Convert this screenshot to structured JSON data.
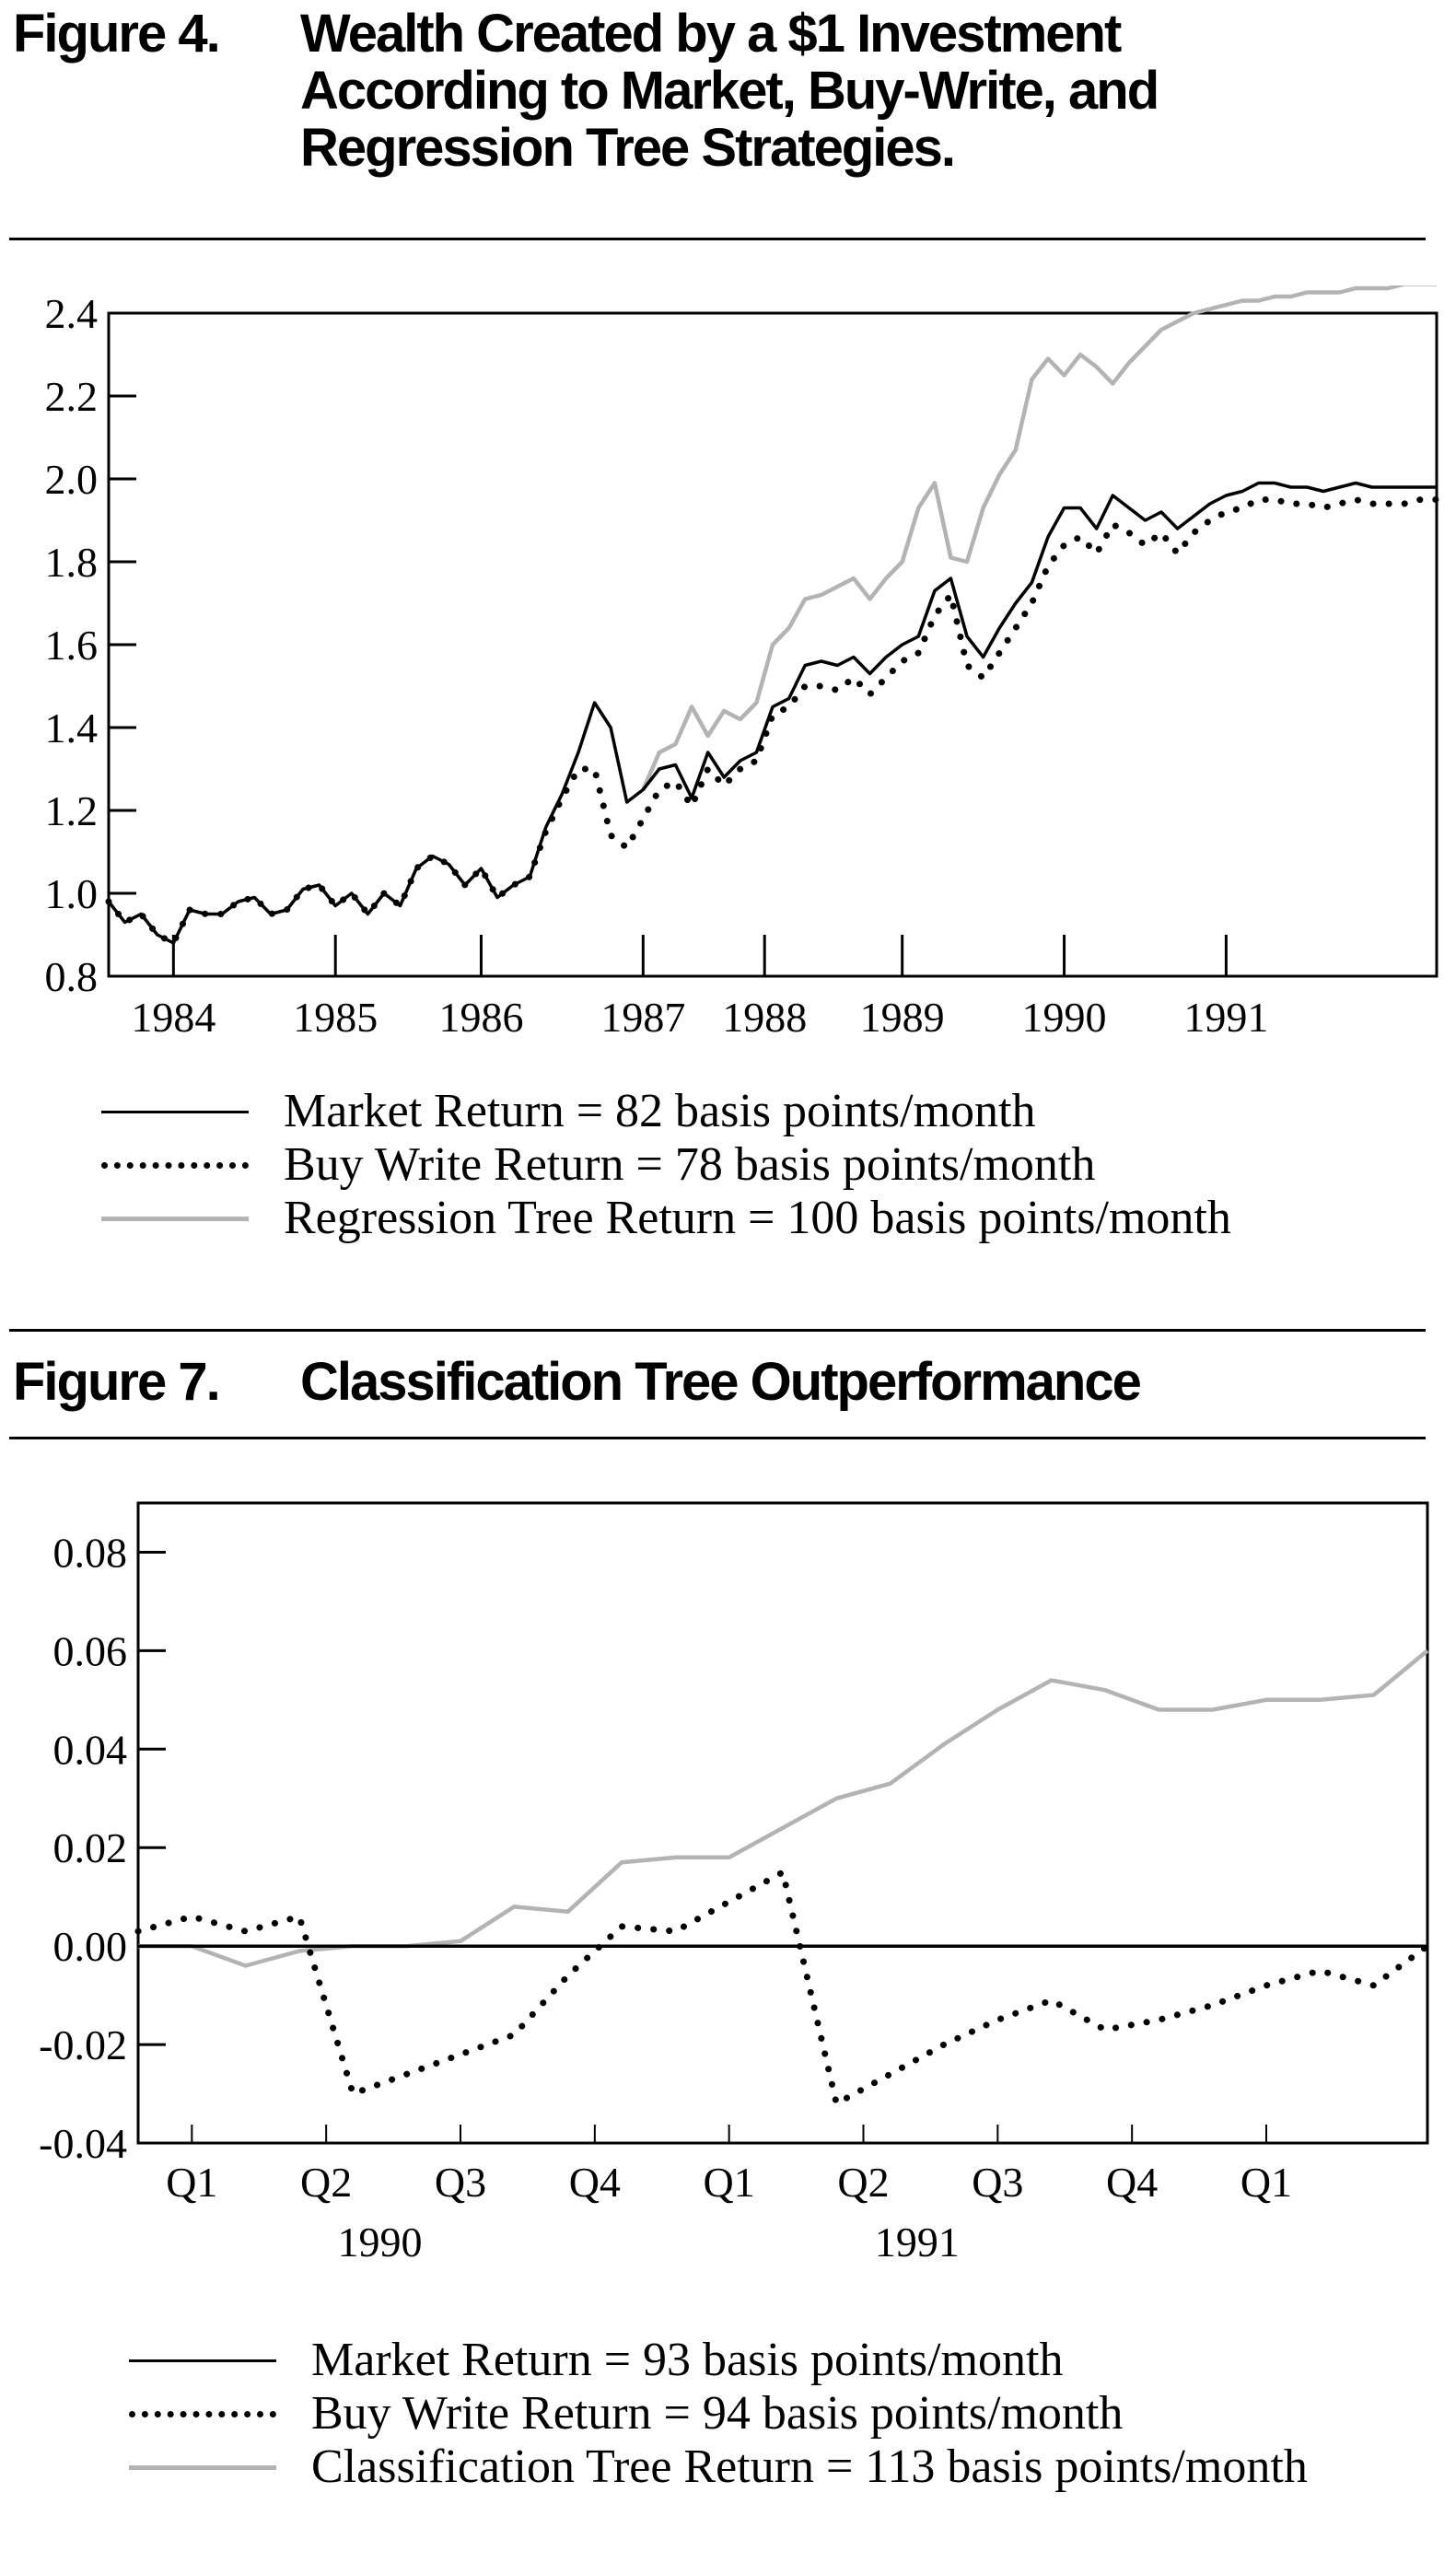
{
  "figures": [
    {
      "number": "Figure 4.",
      "title": "Wealth Created by a $1 Investment According to Market, Buy-Write, and Regression Tree Strategies.",
      "legend": [
        {
          "label": "Market Return = 82 basis points/month",
          "style": "solid"
        },
        {
          "label": "Buy Write Return = 78 basis points/month",
          "style": "dotted"
        },
        {
          "label": "Regression Tree Return = 100 basis points/month",
          "style": "gray"
        }
      ],
      "chart_data": {
        "type": "line",
        "title": "",
        "xlabel": "",
        "ylabel": "",
        "xlim": [
          1983.6,
          1991.8
        ],
        "ylim": [
          0.8,
          2.4
        ],
        "yticks": [
          "0.8",
          "1.0",
          "1.2",
          "1.4",
          "1.6",
          "1.8",
          "2.0",
          "2.2",
          "2.4"
        ],
        "xticks": [
          {
            "label": "1984",
            "at": 1984.0
          },
          {
            "label": "1985",
            "at": 1985.0
          },
          {
            "label": "1986",
            "at": 1985.9
          },
          {
            "label": "1987",
            "at": 1986.9
          },
          {
            "label": "1988",
            "at": 1987.65
          },
          {
            "label": "1989",
            "at": 1988.5
          },
          {
            "label": "1990",
            "at": 1989.5
          },
          {
            "label": "1991",
            "at": 1990.5
          }
        ],
        "grid": false,
        "legend_position": "below",
        "series": [
          {
            "style": "solid",
            "color": "#000000",
            "x": [
              1983.6,
              1983.7,
              1983.8,
              1983.9,
              1984.0,
              1984.1,
              1984.2,
              1984.3,
              1984.4,
              1984.5,
              1984.6,
              1984.7,
              1984.8,
              1984.9,
              1985.0,
              1985.1,
              1985.2,
              1985.3,
              1985.4,
              1985.5,
              1985.6,
              1985.7,
              1985.8,
              1985.9,
              1986.0,
              1986.1,
              1986.2,
              1986.3,
              1986.4,
              1986.5,
              1986.6,
              1986.7,
              1986.8,
              1986.9,
              1987.0,
              1987.1,
              1987.2,
              1987.3,
              1987.4,
              1987.5,
              1987.6,
              1987.7,
              1987.8,
              1987.9,
              1988.0,
              1988.1,
              1988.2,
              1988.3,
              1988.4,
              1988.5,
              1988.6,
              1988.7,
              1988.8,
              1988.9,
              1989.0,
              1989.1,
              1989.2,
              1989.3,
              1989.4,
              1989.5,
              1989.6,
              1989.7,
              1989.8,
              1989.9,
              1990.0,
              1990.1,
              1990.2,
              1990.3,
              1990.4,
              1990.5,
              1990.6,
              1990.7,
              1990.8,
              1990.9,
              1991.0,
              1991.1,
              1991.2,
              1991.3,
              1991.4,
              1991.5,
              1991.6,
              1991.7,
              1991.8
            ],
            "y": [
              0.98,
              0.93,
              0.95,
              0.9,
              0.88,
              0.96,
              0.95,
              0.95,
              0.98,
              0.99,
              0.95,
              0.96,
              1.01,
              1.02,
              0.97,
              1.0,
              0.95,
              1.0,
              0.97,
              1.06,
              1.09,
              1.07,
              1.02,
              1.06,
              0.99,
              1.02,
              1.04,
              1.16,
              1.24,
              1.34,
              1.46,
              1.4,
              1.22,
              1.25,
              1.3,
              1.31,
              1.23,
              1.34,
              1.28,
              1.32,
              1.34,
              1.45,
              1.47,
              1.55,
              1.56,
              1.55,
              1.57,
              1.53,
              1.57,
              1.6,
              1.62,
              1.73,
              1.76,
              1.62,
              1.57,
              1.64,
              1.7,
              1.75,
              1.86,
              1.93,
              1.93,
              1.88,
              1.96,
              1.93,
              1.9,
              1.92,
              1.88,
              1.91,
              1.94,
              1.96,
              1.97,
              1.99,
              1.99,
              1.98,
              1.98,
              1.97,
              1.98,
              1.99,
              1.98,
              1.98,
              1.98,
              1.98,
              1.98
            ]
          },
          {
            "style": "dotted",
            "color": "#000000",
            "x": [
              1983.6,
              1983.7,
              1983.8,
              1983.9,
              1984.0,
              1984.1,
              1984.2,
              1984.3,
              1984.4,
              1984.5,
              1984.6,
              1984.7,
              1984.8,
              1984.9,
              1985.0,
              1985.1,
              1985.2,
              1985.3,
              1985.4,
              1985.5,
              1985.6,
              1985.7,
              1985.8,
              1985.9,
              1986.0,
              1986.1,
              1986.2,
              1986.3,
              1986.4,
              1986.5,
              1986.6,
              1986.7,
              1986.8,
              1986.9,
              1987.0,
              1987.1,
              1987.2,
              1987.3,
              1987.4,
              1987.5,
              1987.6,
              1987.7,
              1987.8,
              1987.9,
              1988.0,
              1988.1,
              1988.2,
              1988.3,
              1988.4,
              1988.5,
              1988.6,
              1988.7,
              1988.8,
              1988.9,
              1989.0,
              1989.1,
              1989.2,
              1989.3,
              1989.4,
              1989.5,
              1989.6,
              1989.7,
              1989.8,
              1989.9,
              1990.0,
              1990.1,
              1990.2,
              1990.3,
              1990.4,
              1990.5,
              1990.6,
              1990.7,
              1990.8,
              1990.9,
              1991.0,
              1991.1,
              1991.2,
              1991.3,
              1991.4,
              1991.5,
              1991.6,
              1991.7,
              1991.8
            ],
            "y": [
              0.98,
              0.93,
              0.95,
              0.9,
              0.88,
              0.96,
              0.95,
              0.95,
              0.98,
              0.99,
              0.95,
              0.96,
              1.01,
              1.02,
              0.97,
              1.0,
              0.95,
              1.0,
              0.97,
              1.06,
              1.09,
              1.07,
              1.02,
              1.06,
              0.99,
              1.02,
              1.04,
              1.15,
              1.23,
              1.3,
              1.3,
              1.14,
              1.11,
              1.18,
              1.25,
              1.27,
              1.21,
              1.3,
              1.26,
              1.3,
              1.32,
              1.43,
              1.45,
              1.5,
              1.5,
              1.49,
              1.52,
              1.48,
              1.52,
              1.56,
              1.58,
              1.67,
              1.72,
              1.55,
              1.52,
              1.58,
              1.64,
              1.7,
              1.79,
              1.84,
              1.86,
              1.82,
              1.89,
              1.87,
              1.84,
              1.87,
              1.82,
              1.87,
              1.9,
              1.92,
              1.93,
              1.95,
              1.95,
              1.94,
              1.94,
              1.93,
              1.94,
              1.95,
              1.94,
              1.94,
              1.94,
              1.95,
              1.95
            ]
          },
          {
            "style": "gray",
            "color": "#b3b3b3",
            "x": [
              1986.9,
              1987.0,
              1987.1,
              1987.2,
              1987.3,
              1987.4,
              1987.5,
              1987.6,
              1987.7,
              1987.8,
              1987.9,
              1988.0,
              1988.1,
              1988.2,
              1988.3,
              1988.4,
              1988.5,
              1988.6,
              1988.7,
              1988.8,
              1988.9,
              1989.0,
              1989.1,
              1989.2,
              1989.3,
              1989.4,
              1989.5,
              1989.6,
              1989.7,
              1989.8,
              1989.9,
              1990.0,
              1990.1,
              1990.2,
              1990.3,
              1990.4,
              1990.5,
              1990.6,
              1990.7,
              1990.8,
              1990.9,
              1991.0,
              1991.1,
              1991.2,
              1991.3,
              1991.4,
              1991.5,
              1991.6,
              1991.7,
              1991.8
            ],
            "y": [
              1.25,
              1.34,
              1.36,
              1.45,
              1.38,
              1.44,
              1.42,
              1.46,
              1.6,
              1.64,
              1.71,
              1.72,
              1.74,
              1.76,
              1.71,
              1.76,
              1.8,
              1.93,
              1.99,
              1.81,
              1.8,
              1.93,
              2.01,
              2.07,
              2.24,
              2.29,
              2.25,
              2.3,
              2.27,
              2.23,
              2.28,
              2.32,
              2.36,
              2.38,
              2.4,
              2.41,
              2.42,
              2.43,
              2.43,
              2.44,
              2.44,
              2.45,
              2.45,
              2.45,
              2.46,
              2.46,
              2.46,
              2.47,
              2.47,
              2.47
            ]
          }
        ]
      }
    },
    {
      "number": "Figure 7.",
      "title": "Classification Tree Outperformance",
      "legend": [
        {
          "label": "Market Return = 93 basis points/month",
          "style": "solid"
        },
        {
          "label": "Buy Write Return = 94 basis points/month",
          "style": "dotted"
        },
        {
          "label": "Classification Tree Return = 113 basis points/month",
          "style": "gray"
        }
      ],
      "chart_data": {
        "type": "line",
        "title": "",
        "xlabel": "",
        "ylabel": "",
        "xlim": [
          0,
          24
        ],
        "ylim": [
          -0.04,
          0.09
        ],
        "yticks": [
          "-0.04",
          "-0.02",
          "0.00",
          "0.02",
          "0.04",
          "0.06",
          "0.08"
        ],
        "xticks": [
          {
            "label": "Q1",
            "at": 1
          },
          {
            "label": "Q2",
            "at": 3.5
          },
          {
            "label": "Q3",
            "at": 6
          },
          {
            "label": "Q4",
            "at": 8.5
          },
          {
            "label": "Q1",
            "at": 11
          },
          {
            "label": "Q2",
            "at": 13.5
          },
          {
            "label": "Q3",
            "at": 16
          },
          {
            "label": "Q4",
            "at": 18.5
          },
          {
            "label": "Q1",
            "at": 21
          }
        ],
        "year_labels": [
          {
            "label": "1990",
            "at": 4.5
          },
          {
            "label": "1991",
            "at": 14.5
          }
        ],
        "grid": false,
        "legend_position": "below",
        "series": [
          {
            "style": "solid",
            "color": "#000000",
            "x": [
              0,
              24
            ],
            "y": [
              0.0,
              0.0
            ]
          },
          {
            "style": "dotted",
            "color": "#000000",
            "x": [
              0,
              1,
              2,
              3,
              4,
              5,
              6,
              7,
              8,
              9,
              10,
              11,
              12,
              13,
              14,
              15,
              16,
              17,
              18,
              19,
              20,
              21,
              22,
              23,
              24
            ],
            "y": [
              0.003,
              0.006,
              0.003,
              0.006,
              -0.03,
              -0.026,
              -0.022,
              -0.018,
              -0.006,
              0.004,
              0.003,
              0.009,
              0.015,
              -0.032,
              -0.026,
              -0.02,
              -0.015,
              -0.011,
              -0.017,
              -0.015,
              -0.012,
              -0.008,
              -0.005,
              -0.008,
              0.0
            ]
          },
          {
            "style": "gray",
            "color": "#b3b3b3",
            "x": [
              0,
              1,
              2,
              3,
              4,
              5,
              6,
              7,
              8,
              9,
              10,
              11,
              12,
              13,
              14,
              15,
              16,
              17,
              18,
              19,
              20,
              21,
              22,
              23,
              24
            ],
            "y": [
              0.0,
              0.0,
              -0.004,
              -0.001,
              0.0,
              0.0,
              0.001,
              0.008,
              0.007,
              0.017,
              0.018,
              0.018,
              0.024,
              0.03,
              0.033,
              0.041,
              0.048,
              0.054,
              0.052,
              0.048,
              0.048,
              0.05,
              0.05,
              0.051,
              0.06
            ]
          }
        ]
      }
    }
  ]
}
